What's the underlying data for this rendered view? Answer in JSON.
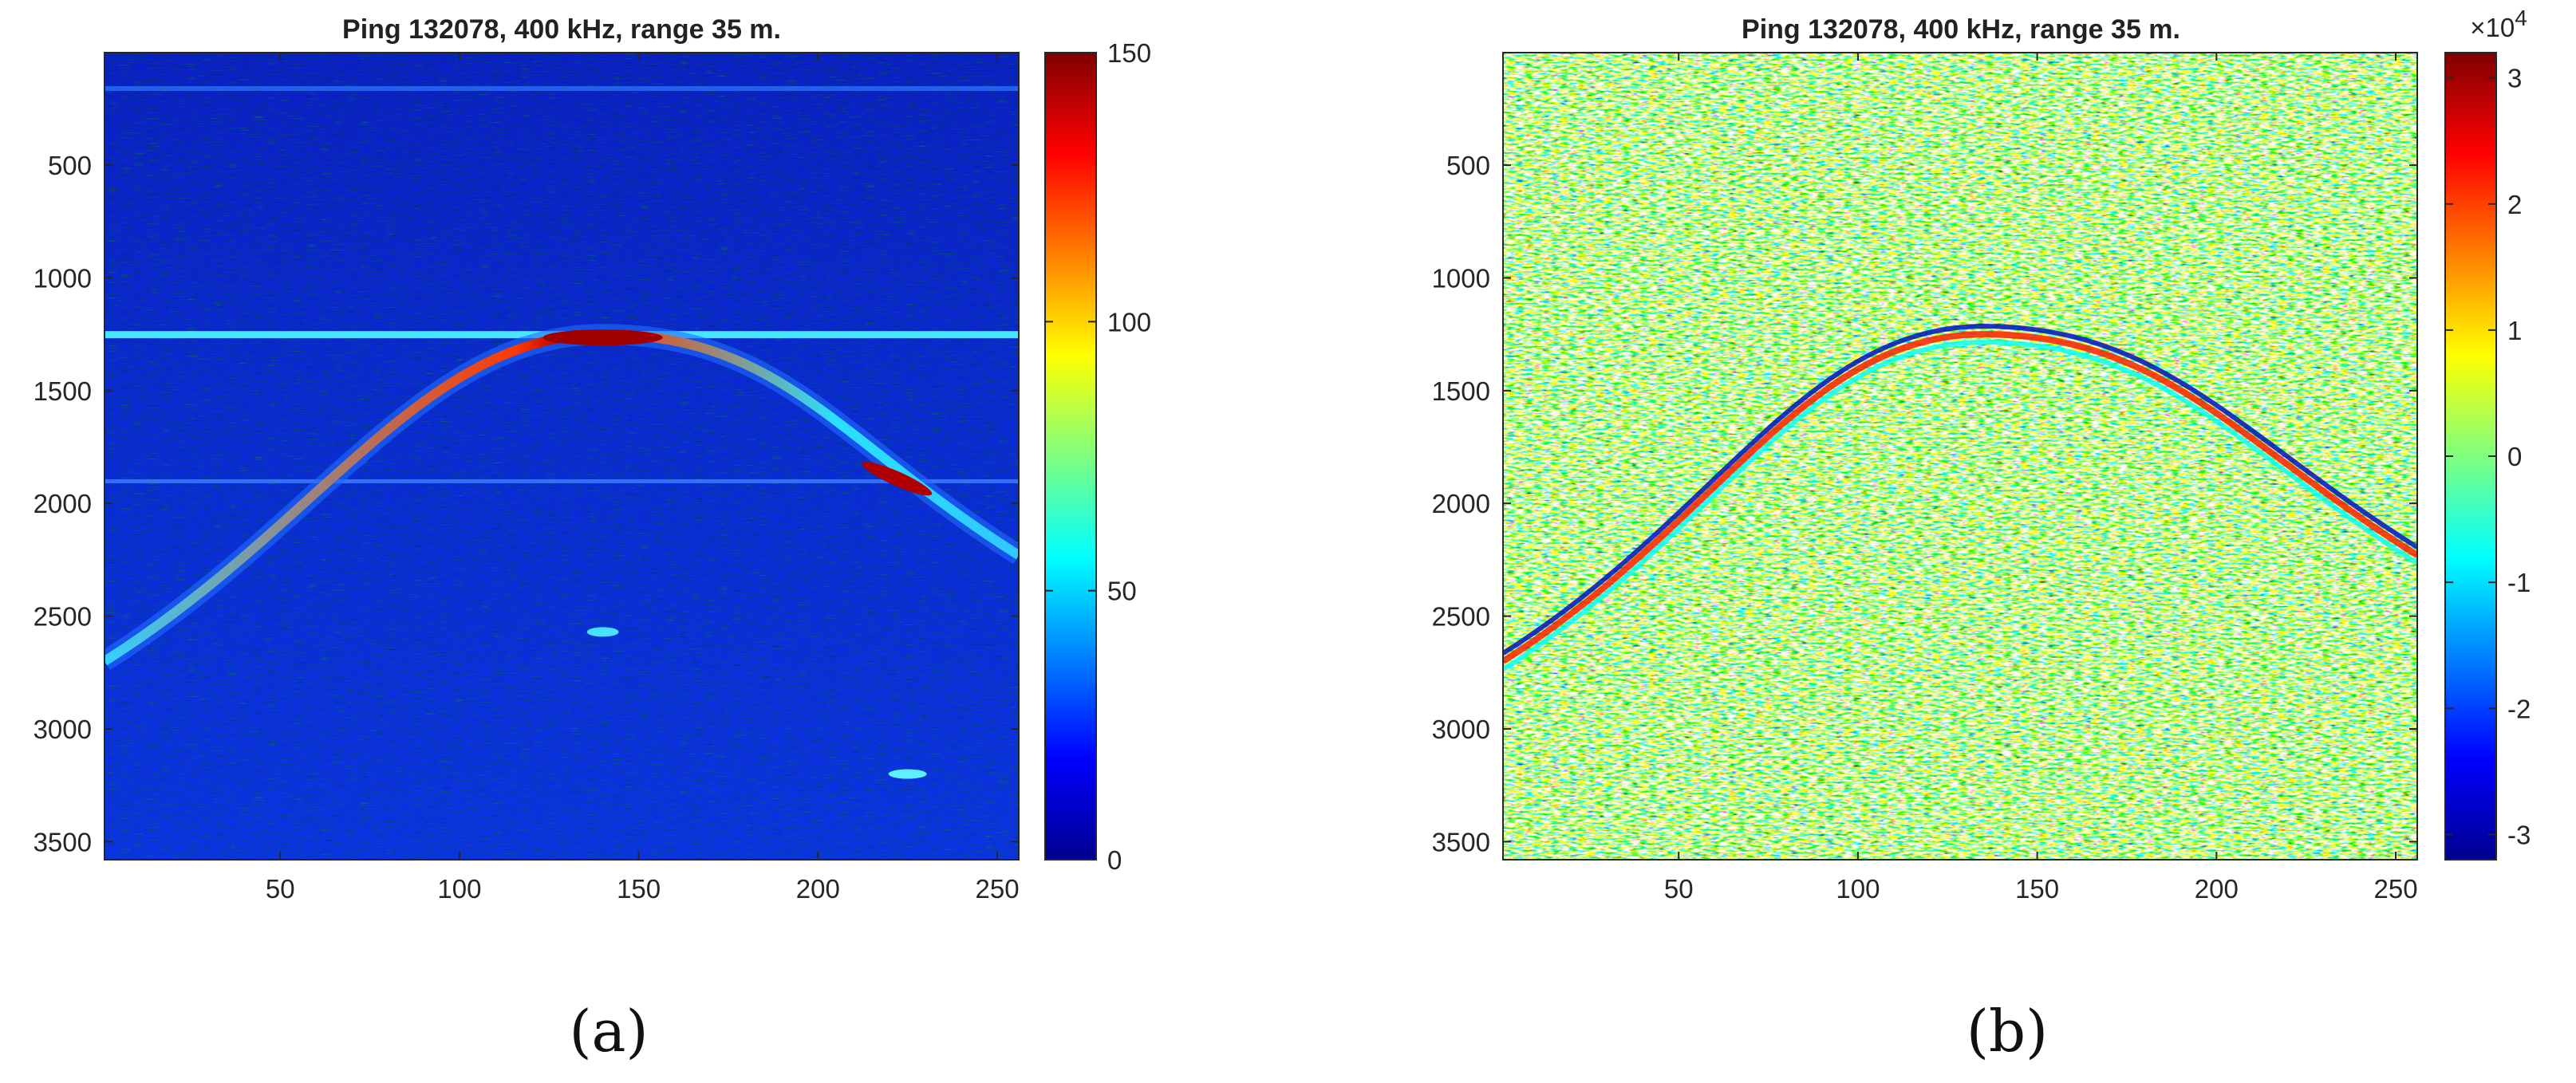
{
  "chart_data": [
    {
      "type": "heatmap",
      "panel": "(a)",
      "title": "Ping 132078, 400 kHz, range 35 m.",
      "xlabel": "",
      "ylabel": "",
      "xlim": [
        1,
        256
      ],
      "ylim": [
        1,
        3580
      ],
      "y_reversed": true,
      "x_ticks": [
        "50",
        "100",
        "150",
        "200",
        "250"
      ],
      "y_ticks": [
        "500",
        "1000",
        "1500",
        "2000",
        "2500",
        "3000",
        "3500"
      ],
      "colorbar": {
        "colormap": "jet",
        "range": [
          0,
          150
        ],
        "ticks": [
          "0",
          "50",
          "100",
          "150"
        ],
        "exponent": ""
      },
      "features": {
        "surface_line_y": 1250,
        "hyperbola_apex": [
          140,
          1250
        ],
        "hyperbola_left_end": [
          1,
          2700
        ],
        "hyperbola_right_end": [
          256,
          2230
        ],
        "secondary_line_y": 1900,
        "echo_spots": [
          [
            140,
            2570
          ],
          [
            225,
            3200
          ]
        ]
      }
    },
    {
      "type": "heatmap",
      "panel": "(b)",
      "title": "Ping 132078, 400 kHz, range 35 m.",
      "xlabel": "",
      "ylabel": "",
      "xlim": [
        1,
        256
      ],
      "ylim": [
        1,
        3580
      ],
      "y_reversed": true,
      "x_ticks": [
        "50",
        "100",
        "150",
        "200",
        "250"
      ],
      "y_ticks": [
        "500",
        "1000",
        "1500",
        "2000",
        "2500",
        "3000",
        "3500"
      ],
      "colorbar": {
        "colormap": "jet",
        "range": [
          -32000,
          32000
        ],
        "ticks": [
          "-3",
          "-2",
          "-1",
          "0",
          "1",
          "2",
          "3"
        ],
        "exponent_base": "×10",
        "exponent_power": "4"
      },
      "features": {
        "hyperbola_apex": [
          135,
          1250
        ],
        "hyperbola_left_end": [
          1,
          2700
        ],
        "hyperbola_right_end": [
          256,
          2230
        ]
      }
    }
  ],
  "colors": {
    "jet_dark_blue": "#00008f",
    "jet_blue": "#0020ff",
    "jet_cyan": "#00ffff",
    "jet_yellow": "#ffff00",
    "jet_red": "#ff0000",
    "jet_dark_red": "#800000"
  }
}
